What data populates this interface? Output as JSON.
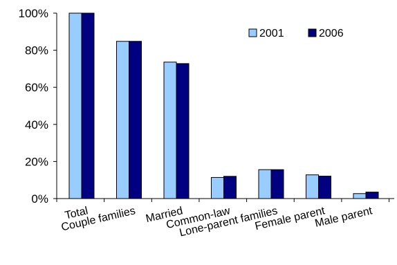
{
  "chart_data": {
    "type": "bar",
    "title": "",
    "xlabel": "",
    "ylabel": "",
    "categories": [
      "Total",
      "Couple families",
      "Married",
      "Common-law",
      "Lone-parent families",
      "Female parent",
      "Male parent"
    ],
    "series": [
      {
        "name": "2001",
        "values": [
          100,
          84.8,
          73.6,
          11.4,
          15.6,
          12.8,
          2.7
        ],
        "color": "#99ccff"
      },
      {
        "name": "2006",
        "values": [
          100,
          84.8,
          72.8,
          12.0,
          15.6,
          12.1,
          3.5
        ],
        "color": "#000080"
      }
    ],
    "ylim": [
      0,
      100
    ],
    "yticks": [
      "0%",
      "20%",
      "40%",
      "60%",
      "80%",
      "100%"
    ],
    "ytick_values": [
      0,
      20,
      40,
      60,
      80,
      100
    ],
    "grid": false,
    "legend_position": "top-right"
  }
}
